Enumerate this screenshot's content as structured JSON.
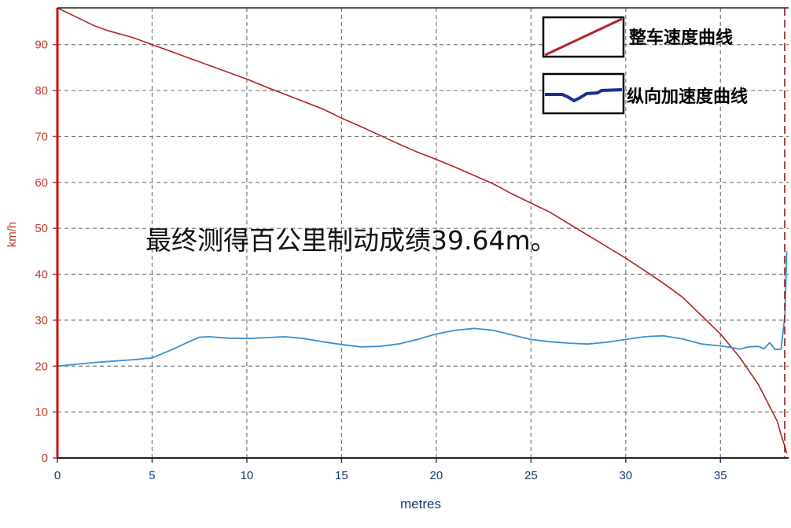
{
  "chart_data": {
    "type": "line",
    "xlabel": "metres",
    "ylabel": "km/h",
    "xlim": [
      0,
      38.6
    ],
    "ylim": [
      0,
      98
    ],
    "x_ticks": [
      0,
      5,
      10,
      15,
      20,
      25,
      30,
      35
    ],
    "y_ticks": [
      0,
      10,
      20,
      30,
      40,
      50,
      60,
      70,
      80,
      90
    ],
    "grid": true,
    "legend_position": "top-right",
    "annotation": "最终测得百公里制动成绩39.64m。",
    "colors": {
      "speed": "#b22222",
      "decel": "#3a8fd0",
      "legend_decel": "#1a2f8f",
      "y_axis": "#c0392b",
      "x_axis": "#1a3a6b"
    },
    "series": [
      {
        "name": "整车速度曲线",
        "x": [
          0,
          1,
          2,
          2.7,
          4,
          5,
          6,
          7,
          8,
          9,
          10,
          11,
          12,
          13,
          14,
          15,
          16,
          17,
          18,
          19,
          20,
          21,
          22,
          23,
          24,
          25,
          26,
          27,
          28,
          29,
          30,
          31,
          32,
          33,
          34,
          35,
          36,
          36.5,
          37,
          37.5,
          38,
          38.2,
          38.4,
          38.5
        ],
        "values": [
          98,
          96,
          94,
          93,
          91.5,
          90,
          88.5,
          87,
          85.5,
          84,
          82.5,
          80.8,
          79.2,
          77.6,
          76,
          74,
          72.2,
          70.3,
          68.4,
          66.6,
          65,
          63.3,
          61.5,
          59.7,
          57.5,
          55.5,
          53.5,
          51,
          48.5,
          46,
          43.5,
          40.8,
          38,
          35,
          31,
          27,
          22,
          19,
          16,
          12,
          8,
          5,
          2.5,
          1
        ]
      },
      {
        "name": "纵向加速度曲线",
        "x": [
          0,
          1,
          2,
          3,
          4,
          5,
          6,
          7,
          7.5,
          8,
          9,
          10,
          11,
          12,
          13,
          14,
          15,
          16,
          17,
          18,
          19,
          20,
          21,
          22,
          23,
          24,
          25,
          26,
          27,
          28,
          29,
          30,
          31,
          32,
          33,
          34,
          35,
          35.5,
          36,
          36.5,
          37,
          37.3,
          37.6,
          37.9,
          38.2,
          38.4,
          38.5
        ],
        "values": [
          20,
          20.4,
          20.8,
          21.1,
          21.4,
          21.8,
          23.5,
          25.4,
          26.3,
          26.4,
          26.1,
          26,
          26.2,
          26.4,
          26,
          25.3,
          24.7,
          24.2,
          24.3,
          24.8,
          25.8,
          27,
          27.8,
          28.2,
          27.8,
          26.8,
          25.8,
          25.3,
          25,
          24.8,
          25.2,
          25.8,
          26.4,
          26.6,
          25.9,
          24.8,
          24.4,
          24.1,
          23.7,
          24.2,
          24.3,
          23.8,
          25.1,
          23.6,
          23.7,
          31,
          45
        ]
      }
    ]
  }
}
